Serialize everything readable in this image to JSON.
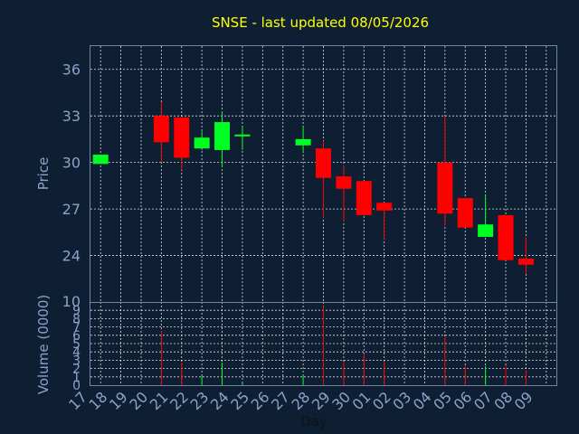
{
  "chart_data": {
    "type": "candlestick",
    "title": "SNSE - last updated 08/05/2026",
    "xlabel": "Day",
    "ylabel": "Price",
    "volume_label": "Volume (0000)",
    "x_ticks": [
      "17",
      "18",
      "19",
      "20",
      "21",
      "22",
      "23",
      "24",
      "25",
      "26",
      "27",
      "28",
      "29",
      "30",
      "01",
      "02",
      "03",
      "04",
      "05",
      "06",
      "07",
      "08",
      "09"
    ],
    "price_ticks": [
      24,
      27,
      30,
      33,
      36
    ],
    "price_ylim": [
      21.0,
      37.5
    ],
    "volume_ticks": [
      0,
      1,
      2,
      3,
      4,
      5,
      6,
      7,
      8,
      9,
      10
    ],
    "volume_ylim": [
      0,
      10
    ],
    "grid": true,
    "colors": {
      "up": "#00ff22",
      "down": "#ff0000",
      "title": "#ffff00",
      "axis_text": "#8aa2c8",
      "background": "#0e1f33"
    },
    "candles": [
      {
        "day": "17",
        "open": 29.9,
        "close": 30.5,
        "high": 30.5,
        "low": 29.9,
        "volume": 0
      },
      {
        "day": "20",
        "open": 33.0,
        "close": 31.3,
        "high": 33.9,
        "low": 30.0,
        "volume": 6.5
      },
      {
        "day": "21",
        "open": 32.9,
        "close": 30.3,
        "high": 32.9,
        "low": 29.5,
        "volume": 2.7
      },
      {
        "day": "22",
        "open": 30.9,
        "close": 31.6,
        "high": 32.0,
        "low": 30.8,
        "volume": 1.2
      },
      {
        "day": "23",
        "open": 30.8,
        "close": 32.6,
        "high": 33.3,
        "low": 29.7,
        "volume": 2.7
      },
      {
        "day": "24",
        "open": 31.7,
        "close": 31.8,
        "high": 32.3,
        "low": 30.8,
        "volume": 0.3
      },
      {
        "day": "27",
        "open": 31.1,
        "close": 31.5,
        "high": 32.3,
        "low": 30.6,
        "volume": 1.3
      },
      {
        "day": "28",
        "open": 30.9,
        "close": 29.0,
        "high": 31.4,
        "low": 26.4,
        "volume": 9.5
      },
      {
        "day": "29",
        "open": 29.1,
        "close": 28.3,
        "high": 29.8,
        "low": 26.2,
        "volume": 2.8
      },
      {
        "day": "30",
        "open": 28.8,
        "close": 26.6,
        "high": 28.8,
        "low": 26.6,
        "volume": 3.8
      },
      {
        "day": "01",
        "open": 27.4,
        "close": 26.9,
        "high": 27.4,
        "low": 25.0,
        "volume": 2.9
      },
      {
        "day": "04",
        "open": 30.0,
        "close": 26.7,
        "high": 33.0,
        "low": 25.9,
        "volume": 5.8
      },
      {
        "day": "05",
        "open": 27.7,
        "close": 25.8,
        "high": 27.7,
        "low": 25.8,
        "volume": 2.4
      },
      {
        "day": "06",
        "open": 25.2,
        "close": 26.0,
        "high": 27.9,
        "low": 25.2,
        "volume": 2.3
      },
      {
        "day": "07",
        "open": 26.6,
        "close": 23.7,
        "high": 26.6,
        "low": 23.7,
        "volume": 2.4
      },
      {
        "day": "08",
        "open": 23.8,
        "close": 23.4,
        "high": 25.2,
        "low": 22.8,
        "volume": 1.8
      }
    ]
  }
}
